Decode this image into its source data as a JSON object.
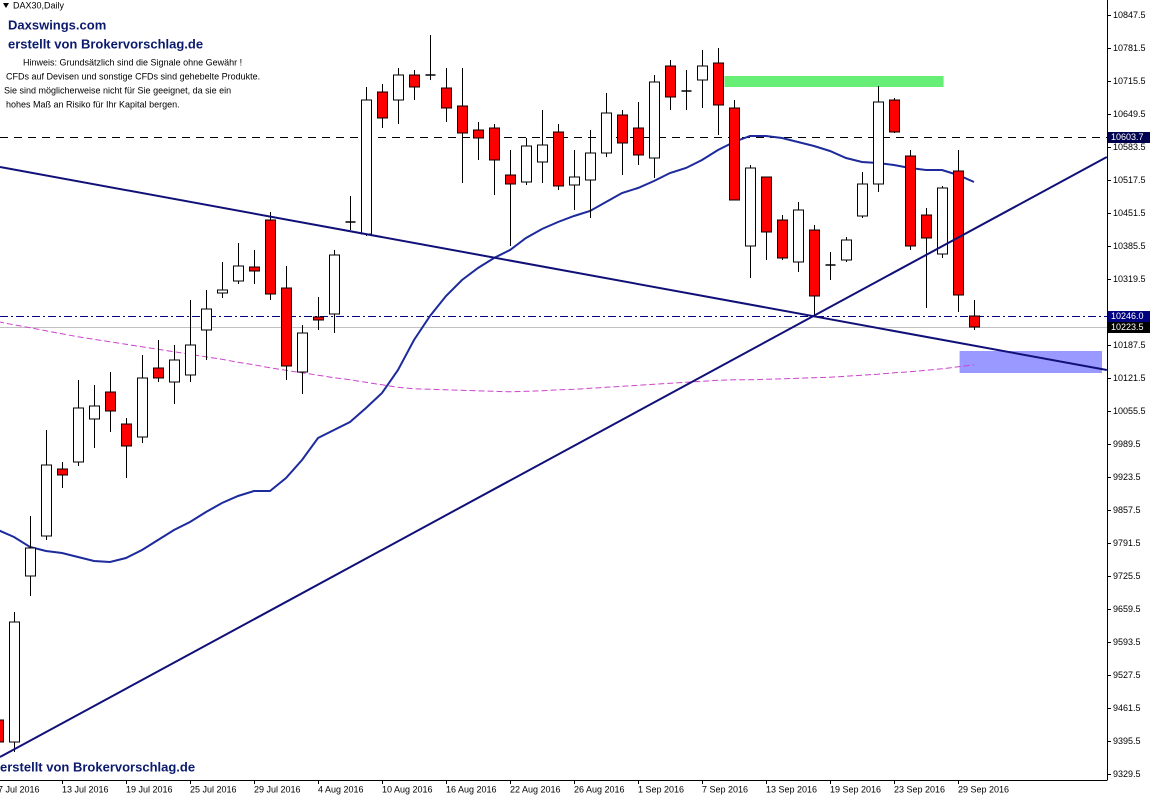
{
  "chart_data": {
    "type": "candlestick",
    "title": "DAX30,Daily",
    "brand": "Daxswings.com",
    "credit": "erstellt von Brokervorschlag.de",
    "notes": [
      "Hinweis: Grundsätzlich sind die Signale ohne Gewähr !",
      "CFDs auf Devisen und sonstige CFDs sind gehebelte Produkte.",
      "Sie sind möglicherweise nicht für Sie geeignet, da sie ein",
      "hohes Maß an Risiko für Ihr Kapital bergen."
    ],
    "footer": "erstellt von Brokervorschlag.de",
    "categories": [
      "7 Jul 2016",
      null,
      null,
      null,
      "13 Jul 2016",
      null,
      null,
      null,
      "19 Jul 2016",
      null,
      null,
      null,
      "25 Jul 2016",
      null,
      null,
      null,
      "29 Jul 2016",
      null,
      null,
      null,
      "4 Aug 2016",
      null,
      null,
      null,
      "10 Aug 2016",
      null,
      null,
      null,
      "16 Aug 2016",
      null,
      null,
      null,
      "22 Aug 2016",
      null,
      null,
      null,
      "26 Aug 2016",
      null,
      null,
      null,
      "1 Sep 2016",
      null,
      null,
      null,
      "7 Sep 2016",
      null,
      null,
      null,
      "13 Sep 2016",
      null,
      null,
      null,
      "19 Sep 2016",
      null,
      null,
      null,
      "23 Sep 2016",
      null,
      null,
      null,
      "29 Sep 2016",
      null
    ],
    "open": [
      9437.5,
      9393.5,
      9725.5,
      9805.5,
      9939.5,
      9953.5,
      10039.5,
      10093.5,
      10029.5,
      10003.5,
      10141.5,
      10113.5,
      10127.5,
      10217.5,
      10291.5,
      10315.5,
      10343.5,
      10437.5,
      10301.5,
      10133.5,
      10243.5,
      10249.5,
      10433.5,
      10409.5,
      10693.5,
      10677.5,
      10727.5,
      10727.5,
      10701.5,
      10665.5,
      10617.5,
      10621.5,
      10527.5,
      10513.5,
      10553.5,
      10613.5,
      10507.5,
      10517.5,
      10571.5,
      10647.5,
      10621.5,
      10561.5,
      10745.5,
      10695.5,
      10717.5,
      10751.5,
      10661.5,
      10385.5,
      10523.5,
      10437.5,
      10353.5,
      10417.5,
      10347.5,
      10357.5,
      10445.5,
      10509.5,
      10677.5,
      10565.5,
      10447.5,
      10369.5,
      10535.5,
      10245.5
    ],
    "high": [
      9445.5,
      9653.5,
      9845.5,
      10017.5,
      9953.5,
      10117.5,
      10107.5,
      10133.5,
      10041.5,
      10167.5,
      10197.5,
      10187.5,
      10277.5,
      10297.5,
      10353.5,
      10391.5,
      10377.5,
      10453.5,
      10345.5,
      10227.5,
      10283.5,
      10377.5,
      10485.5,
      10703.5,
      10709.5,
      10741.5,
      10737.5,
      10807.5,
      10741.5,
      10741.5,
      10633.5,
      10629.5,
      10577.5,
      10601.5,
      10657.5,
      10629.5,
      10577.5,
      10617.5,
      10691.5,
      10657.5,
      10673.5,
      10727.5,
      10757.5,
      10737.5,
      10777.5,
      10781.5,
      10677.5,
      10547.5,
      10523.5,
      10447.5,
      10473.5,
      10427.5,
      10373.5,
      10403.5,
      10533.5,
      10705.5,
      10681.5,
      10577.5,
      10461.5,
      10505.5,
      10577.5,
      10277.5
    ],
    "low": [
      9389.5,
      9373.5,
      9685.5,
      9797.5,
      9901.5,
      9945.5,
      9981.5,
      10013.5,
      9921.5,
      9991.5,
      10113.5,
      10069.5,
      10113.5,
      10157.5,
      10281.5,
      10309.5,
      10309.5,
      10277.5,
      10117.5,
      10089.5,
      10217.5,
      10211.5,
      10417.5,
      10405.5,
      10621.5,
      10629.5,
      10677.5,
      10717.5,
      10633.5,
      10511.5,
      10557.5,
      10487.5,
      10385.5,
      10507.5,
      10511.5,
      10497.5,
      10457.5,
      10441.5,
      10563.5,
      10527.5,
      10547.5,
      10521.5,
      10657.5,
      10657.5,
      10661.5,
      10607.5,
      10477.5,
      10321.5,
      10357.5,
      10357.5,
      10333.5,
      10245.5,
      10317.5,
      10353.5,
      10441.5,
      10493.5,
      10611.5,
      10377.5,
      10261.5,
      10361.5,
      10253.5,
      10217.5
    ],
    "close": [
      9393.5,
      9633.5,
      9781.5,
      9947.5,
      9927.5,
      10061.5,
      10065.5,
      10055.5,
      9985.5,
      10121.5,
      10121.5,
      10157.5,
      10187.5,
      10259.5,
      10297.5,
      10345.5,
      10335.5,
      10289.5,
      10145.5,
      10211.5,
      10237.5,
      10367.5,
      10433.5,
      10677.5,
      10641.5,
      10727.5,
      10703.5,
      10727.5,
      10661.5,
      10611.5,
      10601.5,
      10557.5,
      10509.5,
      10585.5,
      10587.5,
      10505.5,
      10523.5,
      10571.5,
      10651.5,
      10591.5,
      10567.5,
      10713.5,
      10683.5,
      10695.5,
      10745.5,
      10667.5,
      10477.5,
      10541.5,
      10413.5,
      10361.5,
      10457.5,
      10285.5,
      10347.5,
      10397.5,
      10509.5,
      10673.5,
      10613.5,
      10385.5,
      10401.5,
      10501.5,
      10287.5,
      10223.5
    ],
    "up_color": "#ffffff",
    "down_color": "#ff0000",
    "lines": [
      {
        "color": "#1c2a9c",
        "style": "solid",
        "values": [
          9817.5,
          9803.5,
          9783.5,
          9775.5,
          9771.5,
          9763.5,
          9755.5,
          9753.5,
          9761.5,
          9777.5,
          9797.5,
          9817.5,
          9833.5,
          9853.5,
          9871.5,
          9885.5,
          9895.5,
          9895.5,
          9921.5,
          9957.5,
          10001.5,
          10017.5,
          10033.5,
          10061.5,
          10091.5,
          10137.5,
          10197.5,
          10245.5,
          10285.5,
          10317.5,
          10341.5,
          10361.5,
          10377.5,
          10401.5,
          10419.5,
          10433.5,
          10445.5,
          10455.5,
          10473.5,
          10491.5,
          10501.5,
          10515.5,
          10531.5,
          10541.5,
          10557.5,
          10577.5,
          10593.5,
          10605.5,
          10605.5,
          10601.5,
          10593.5,
          10585.5,
          10575.5,
          10561.5,
          10553.5,
          10551.5,
          10547.5,
          10541.5,
          10537.5,
          10537.5,
          10527.5,
          10513.5
        ]
      },
      {
        "color": "#cc44cc",
        "style": "dashed",
        "values": [
          10234,
          10228,
          10222,
          10216,
          10210,
          10204,
          10199,
          10194,
          10189,
          10184,
          10179,
          10174,
          10169,
          10164,
          10159,
          10153,
          10148,
          10142,
          10137,
          10132,
          10127,
          10122,
          10118,
          10113,
          10108,
          10103,
          10100,
          10099,
          10098,
          10097,
          10096,
          10095,
          10094,
          10095,
          10096,
          10098,
          10099,
          10101,
          10103,
          10105,
          10107,
          10109,
          10111,
          10113,
          10115,
          10117,
          10118,
          10118,
          10119,
          10120,
          10121,
          10122,
          10123,
          10125,
          10127,
          10129,
          10132,
          10134,
          10137,
          10140,
          10144,
          10148
        ]
      }
    ],
    "trendlines": [
      {
        "color": "#101078",
        "from": [
          0.125,
          10543.5
        ],
        "to": [
          69.3,
          10137.5
        ]
      },
      {
        "color": "#101078",
        "from": [
          0.125,
          9363.5
        ],
        "to": [
          69.3,
          10563.5
        ]
      }
    ],
    "zones": [
      {
        "color": "#66ee77",
        "x": [
          45.4,
          59.1
        ],
        "y": [
          10703.5,
          10725.5
        ]
      },
      {
        "color": "#9999ff",
        "x": [
          60.1,
          69.0
        ],
        "y": [
          10131.5,
          10175.5
        ]
      }
    ],
    "hlines": [
      {
        "value": 10603.7,
        "style": "dashed",
        "color": "#000000",
        "label_bg": "#000050"
      },
      {
        "value": 10246,
        "label": "10246.0",
        "style": "dashdot",
        "color": "#000080",
        "label_bg": "#000080"
      },
      {
        "value": 10223.5,
        "style": "solid",
        "color": "#c0c0c0",
        "label_bg": "#000000"
      }
    ],
    "ylim": [
      9317.5,
      10877.5
    ],
    "yticks": [
      9329.5,
      9395.5,
      9461.5,
      9527.5,
      9593.5,
      9659.5,
      9725.5,
      9791.5,
      9857.5,
      9923.5,
      9989.5,
      10055.5,
      10121.5,
      10187.5,
      10319.5,
      10385.5,
      10451.5,
      10517.5,
      10583.5,
      10649.5,
      10715.5,
      10781.5,
      10847.5
    ]
  }
}
